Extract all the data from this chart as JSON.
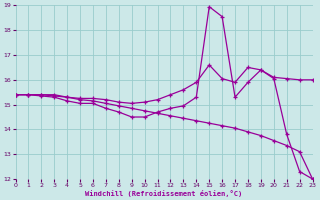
{
  "bg_color": "#cce8e8",
  "grid_color": "#99cccc",
  "line_color": "#990099",
  "xlabel": "Windchill (Refroidissement éolien,°C)",
  "xmin": 0,
  "xmax": 23,
  "ymin": 12,
  "ymax": 19,
  "line1_x": [
    0,
    1,
    2,
    3,
    4,
    5,
    6,
    7,
    8,
    9,
    10,
    11,
    12,
    13,
    14,
    15,
    16,
    17,
    18,
    19,
    20,
    21,
    22,
    23
  ],
  "line1_y": [
    15.4,
    15.4,
    15.4,
    15.35,
    15.3,
    15.2,
    15.15,
    15.05,
    14.95,
    14.85,
    14.75,
    14.65,
    14.55,
    14.45,
    14.35,
    14.25,
    14.15,
    14.05,
    13.9,
    13.75,
    13.55,
    13.35,
    13.1,
    12.0
  ],
  "line2_x": [
    0,
    1,
    2,
    3,
    4,
    5,
    6,
    7,
    8,
    9,
    10,
    11,
    12,
    13,
    14,
    15,
    16,
    17,
    18,
    19,
    20,
    21,
    22,
    23
  ],
  "line2_y": [
    15.4,
    15.4,
    15.35,
    15.3,
    15.15,
    15.05,
    15.05,
    14.85,
    14.7,
    14.5,
    14.5,
    14.7,
    14.85,
    14.95,
    15.3,
    18.95,
    18.55,
    15.3,
    15.9,
    16.4,
    16.05,
    13.8,
    12.3,
    12.0
  ],
  "line3_x": [
    0,
    1,
    2,
    3,
    4,
    5,
    6,
    7,
    8,
    9,
    10,
    11,
    12,
    13,
    14,
    15,
    16,
    17,
    18,
    19,
    20,
    21,
    22,
    23
  ],
  "line3_y": [
    15.4,
    15.4,
    15.4,
    15.4,
    15.3,
    15.25,
    15.25,
    15.2,
    15.1,
    15.05,
    15.1,
    15.2,
    15.4,
    15.6,
    15.9,
    16.6,
    16.05,
    15.9,
    16.5,
    16.4,
    16.1,
    16.05,
    16.0,
    16.0
  ]
}
